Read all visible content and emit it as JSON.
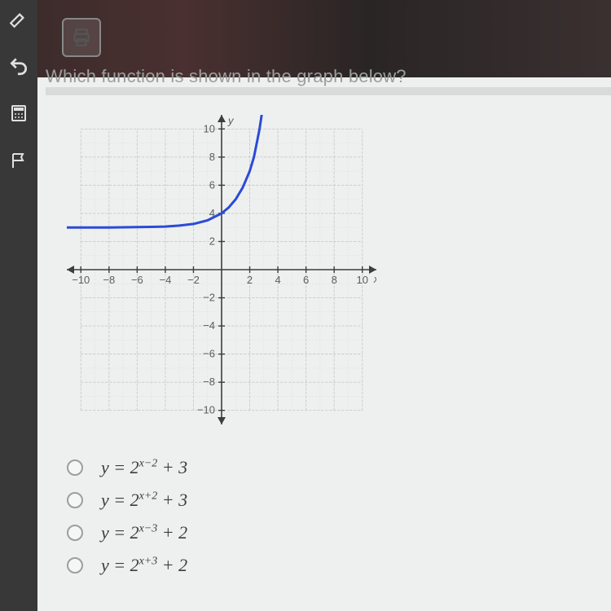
{
  "question": "Which function is shown in the graph below?",
  "sidebar": {
    "icons": [
      "highlighter",
      "undo",
      "calculator",
      "flag"
    ]
  },
  "toolbar": {
    "print_label": "print"
  },
  "chart": {
    "type": "line",
    "xlim": [
      -11,
      11
    ],
    "ylim": [
      -11,
      11
    ],
    "tick_step": 2,
    "tick_labels_x": [
      "-10",
      "-8",
      "-6",
      "-4",
      "-2",
      "2",
      "4",
      "6",
      "8",
      "10"
    ],
    "tick_labels_y": [
      "-10",
      "-8",
      "-6",
      "-4",
      "-2",
      "2",
      "4",
      "6",
      "8",
      "10"
    ],
    "axis_labels": {
      "x": "x",
      "y": "y"
    },
    "grid_minor_step": 1,
    "grid_color": "#c7cac8",
    "grid_minor_color": "#dddfdd",
    "axis_color": "#3a3e3c",
    "curve_color": "#2a4bd7",
    "asymptote_y": 3,
    "curve_points": [
      [
        -11,
        3.0
      ],
      [
        -10,
        3.0
      ],
      [
        -8,
        3.0
      ],
      [
        -6,
        3.02
      ],
      [
        -5,
        3.04
      ],
      [
        -4,
        3.06
      ],
      [
        -3,
        3.13
      ],
      [
        -2,
        3.25
      ],
      [
        -1,
        3.5
      ],
      [
        0,
        4.0
      ],
      [
        0.5,
        4.41
      ],
      [
        1,
        5.0
      ],
      [
        1.5,
        5.83
      ],
      [
        2,
        7.0
      ],
      [
        2.3,
        8.0
      ],
      [
        2.5,
        9.0
      ],
      [
        2.7,
        10.0
      ],
      [
        2.85,
        11.0
      ]
    ],
    "line_width": 3,
    "background_color": "#eef0ef",
    "tick_fontsize": 13,
    "tick_color": "#5a5e5c"
  },
  "options": [
    {
      "base": "y = 2",
      "exp": "x−2",
      "tail": " + 3"
    },
    {
      "base": "y = 2",
      "exp": "x+2",
      "tail": " + 3"
    },
    {
      "base": "y = 2",
      "exp": "x−3",
      "tail": " + 2"
    },
    {
      "base": "y = 2",
      "exp": "x+3",
      "tail": " + 2"
    }
  ],
  "colors": {
    "page_bg": "#eef0ef",
    "sidebar_bg": "#383838",
    "text_muted": "#9aa09e"
  }
}
